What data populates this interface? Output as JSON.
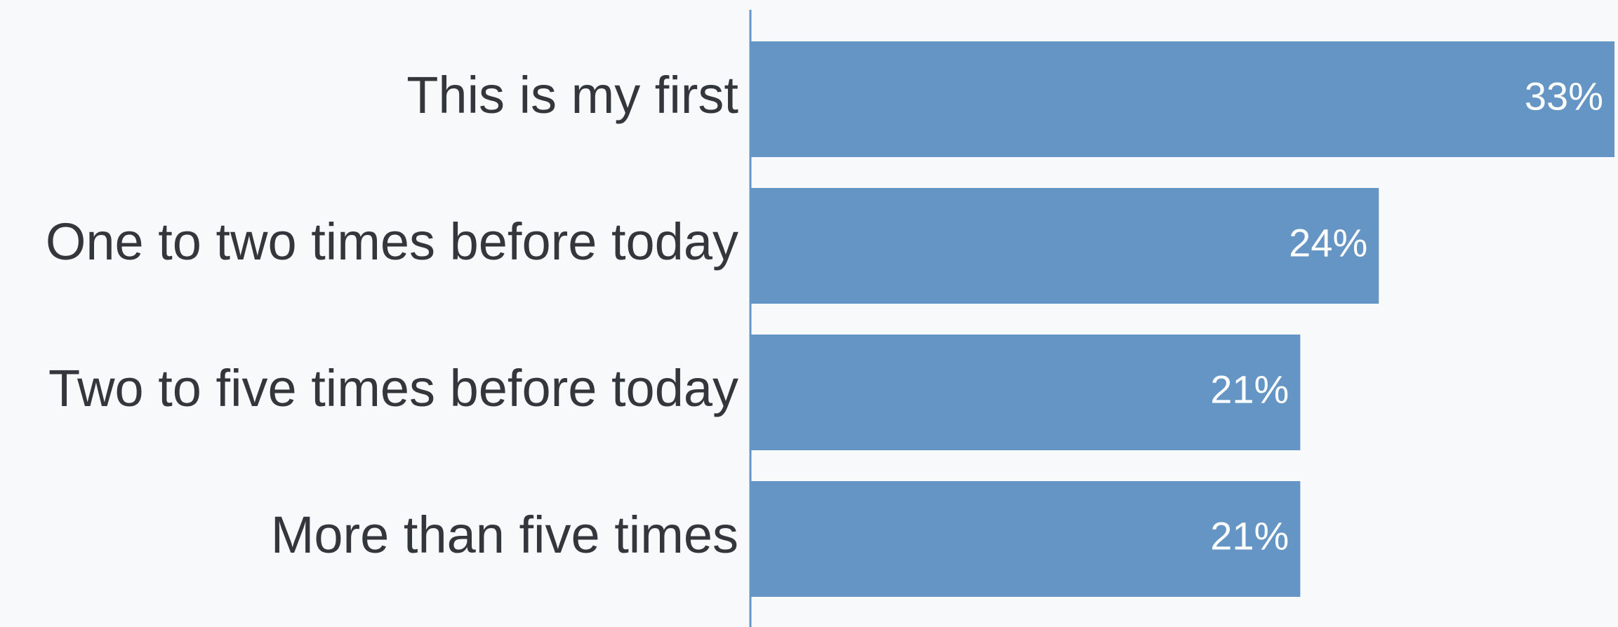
{
  "chart_data": {
    "type": "bar",
    "orientation": "horizontal",
    "categories": [
      "This is my first",
      "One to two times before today",
      "Two to five times before today",
      "More than five times"
    ],
    "values": [
      33,
      24,
      21,
      21
    ],
    "value_labels": [
      "33%",
      "24%",
      "21%",
      "21%"
    ],
    "color": "#6495c5"
  }
}
